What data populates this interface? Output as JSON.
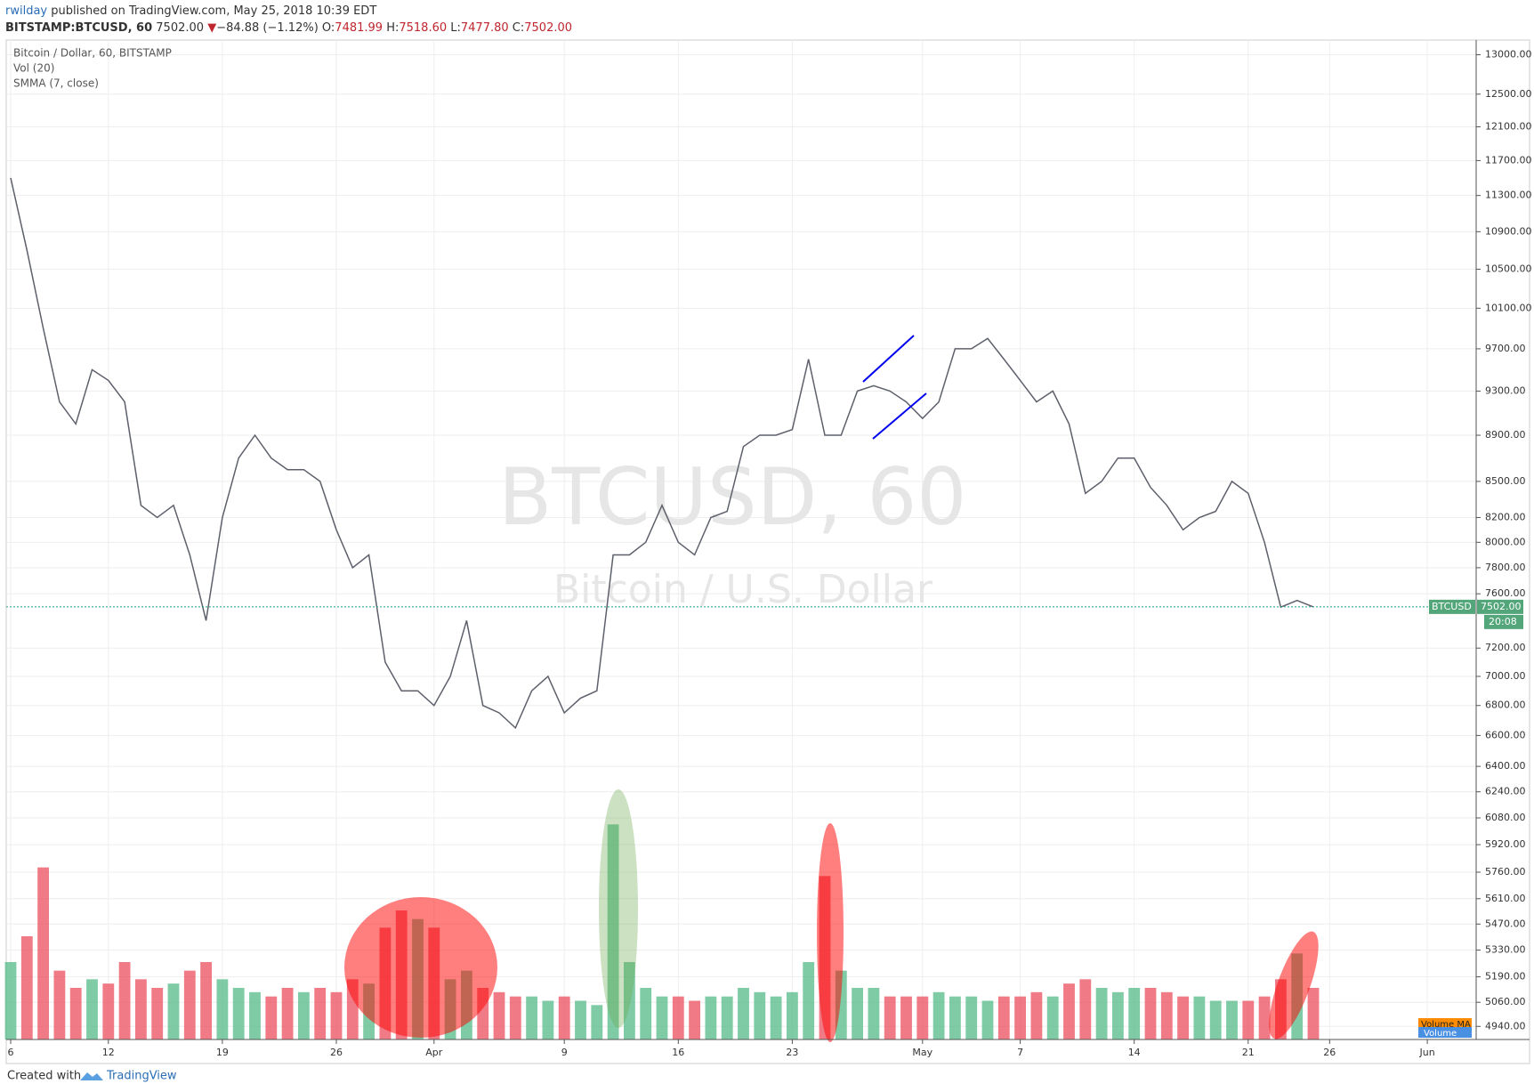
{
  "header": {
    "user": "rwilday",
    "published": "published on TradingView.com, May 25, 2018 10:39 EDT"
  },
  "symbol_bar": {
    "symbol": "BITSTAMP:BTCUSD, 60",
    "last": "7502.00",
    "arrow": "▼",
    "change": "−84.88 (−1.12%)",
    "o_label": "O:",
    "o": "7481.99",
    "h_label": "H:",
    "h": "7518.60",
    "l_label": "L:",
    "l": "7477.80",
    "c_label": "C:",
    "c": "7502.00"
  },
  "chart_data": {
    "type": "line",
    "legend": [
      "Bitcoin / Dollar, 60, BITSTAMP",
      "Vol (20)",
      "SMMA (7, close)"
    ],
    "watermark": "BTCUSD, 60",
    "watermark_subtitle": "Bitcoin / U.S. Dollar",
    "x": [
      "03-06",
      "03-07",
      "03-08",
      "03-09",
      "03-10",
      "03-11",
      "03-12",
      "03-13",
      "03-14",
      "03-15",
      "03-16",
      "03-17",
      "03-18",
      "03-19",
      "03-20",
      "03-21",
      "03-22",
      "03-23",
      "03-24",
      "03-25",
      "03-26",
      "03-27",
      "03-28",
      "03-29",
      "03-30",
      "03-31",
      "04-01",
      "04-02",
      "04-03",
      "04-04",
      "04-05",
      "04-06",
      "04-07",
      "04-08",
      "04-09",
      "04-10",
      "04-11",
      "04-12",
      "04-13",
      "04-14",
      "04-15",
      "04-16",
      "04-17",
      "04-18",
      "04-19",
      "04-20",
      "04-21",
      "04-22",
      "04-23",
      "04-24",
      "04-25",
      "04-26",
      "04-27",
      "04-28",
      "04-29",
      "04-30",
      "05-01",
      "05-02",
      "05-03",
      "05-04",
      "05-05",
      "05-06",
      "05-07",
      "05-08",
      "05-09",
      "05-10",
      "05-11",
      "05-12",
      "05-13",
      "05-14",
      "05-15",
      "05-16",
      "05-17",
      "05-18",
      "05-19",
      "05-20",
      "05-21",
      "05-22",
      "05-23",
      "05-24",
      "05-25"
    ],
    "series": [
      {
        "name": "Bitcoin / Dollar, 60, BITSTAMP",
        "color": "#5d606b",
        "values": [
          11500,
          10700,
          9900,
          9200,
          9000,
          9500,
          9400,
          9200,
          8300,
          8200,
          8300,
          7900,
          7400,
          8200,
          8700,
          8900,
          8700,
          8600,
          8600,
          8500,
          8100,
          7800,
          7900,
          7100,
          6900,
          6900,
          6800,
          7000,
          7400,
          6800,
          6750,
          6650,
          6900,
          7000,
          6750,
          6850,
          6900,
          7900,
          7900,
          8000,
          8300,
          8000,
          7900,
          8200,
          8250,
          8800,
          8900,
          8900,
          8950,
          9600,
          8900,
          8900,
          9300,
          9350,
          9300,
          9200,
          9050,
          9200,
          9700,
          9700,
          9800,
          9600,
          9400,
          9200,
          9300,
          9000,
          8400,
          8500,
          8700,
          8700,
          8450,
          8300,
          8100,
          8200,
          8250,
          8500,
          8400,
          8000,
          7500,
          7550,
          7502
        ]
      },
      {
        "name": "Vol (20)",
        "color": "#53b987",
        "axis": "volume",
        "values": [
          900,
          1200,
          2000,
          800,
          600,
          700,
          650,
          900,
          700,
          600,
          650,
          800,
          900,
          700,
          600,
          550,
          500,
          600,
          550,
          600,
          550,
          700,
          650,
          1300,
          1500,
          1400,
          1300,
          700,
          800,
          600,
          550,
          500,
          500,
          450,
          500,
          450,
          400,
          2500,
          900,
          600,
          500,
          500,
          450,
          500,
          500,
          600,
          550,
          500,
          550,
          900,
          1900,
          800,
          600,
          600,
          500,
          500,
          500,
          550,
          500,
          500,
          450,
          500,
          500,
          550,
          500,
          650,
          700,
          600,
          550,
          600,
          600,
          550,
          500,
          500,
          450,
          450,
          450,
          500,
          700,
          1000,
          600
        ]
      }
    ],
    "indicator": "SMMA (7, close)",
    "down_color": "#eb4d5c",
    "volume_lim": [
      0,
      3000
    ],
    "ylim": [
      4876,
      13180
    ],
    "log_scale": true,
    "grid": true,
    "yticks": [
      {
        "value": 13000,
        "label": "13000.00"
      },
      {
        "value": 12500,
        "label": "12500.00"
      },
      {
        "value": 12100,
        "label": "12100.00"
      },
      {
        "value": 11700,
        "label": "11700.00"
      },
      {
        "value": 11300,
        "label": "11300.00"
      },
      {
        "value": 10900,
        "label": "10900.00"
      },
      {
        "value": 10500,
        "label": "10500.00"
      },
      {
        "value": 10100,
        "label": "10100.00"
      },
      {
        "value": 9700,
        "label": "9700.00"
      },
      {
        "value": 9300,
        "label": "9300.00"
      },
      {
        "value": 8900,
        "label": "8900.00"
      },
      {
        "value": 8500,
        "label": "8500.00"
      },
      {
        "value": 8200,
        "label": "8200.00"
      },
      {
        "value": 8000,
        "label": "8000.00"
      },
      {
        "value": 7800,
        "label": "7800.00"
      },
      {
        "value": 7600,
        "label": "7600.00"
      },
      {
        "value": 7200,
        "label": "7200.00"
      },
      {
        "value": 7000,
        "label": "7000.00"
      },
      {
        "value": 6800,
        "label": "6800.00"
      },
      {
        "value": 6600,
        "label": "6600.00"
      },
      {
        "value": 6400,
        "label": "6400.00"
      },
      {
        "value": 6240,
        "label": "6240.00"
      },
      {
        "value": 6080,
        "label": "6080.00"
      },
      {
        "value": 5920,
        "label": "5920.00"
      },
      {
        "value": 5760,
        "label": "5760.00"
      },
      {
        "value": 5610,
        "label": "5610.00"
      },
      {
        "value": 5470,
        "label": "5470.00"
      },
      {
        "value": 5330,
        "label": "5330.00"
      },
      {
        "value": 5190,
        "label": "5190.00"
      },
      {
        "value": 5060,
        "label": "5060.00"
      },
      {
        "value": 4940,
        "label": "4940.00"
      }
    ],
    "xlim": [
      "03-06",
      "06-04"
    ],
    "xticks": [
      {
        "value": "03-06",
        "label": "6"
      },
      {
        "value": "03-12",
        "label": "12"
      },
      {
        "value": "03-19",
        "label": "19"
      },
      {
        "value": "03-26",
        "label": "26"
      },
      {
        "value": "04-01",
        "label": "Apr"
      },
      {
        "value": "04-09",
        "label": "9"
      },
      {
        "value": "04-16",
        "label": "16"
      },
      {
        "value": "04-23",
        "label": "23"
      },
      {
        "value": "05-01",
        "label": "May"
      },
      {
        "value": "05-07",
        "label": "7"
      },
      {
        "value": "05-14",
        "label": "14"
      },
      {
        "value": "05-21",
        "label": "21"
      },
      {
        "value": "05-26",
        "label": "26"
      },
      {
        "value": "06-01",
        "label": "Jun"
      }
    ],
    "last_price": {
      "symbol": "BTCUSD",
      "value": {
        "value": 7502,
        "label": "7502.00"
      },
      "countdown": "20:08"
    },
    "badges": [
      "Volume MA",
      "Volume"
    ]
  },
  "footer": {
    "created": "Created with",
    "brand": "TradingView"
  }
}
